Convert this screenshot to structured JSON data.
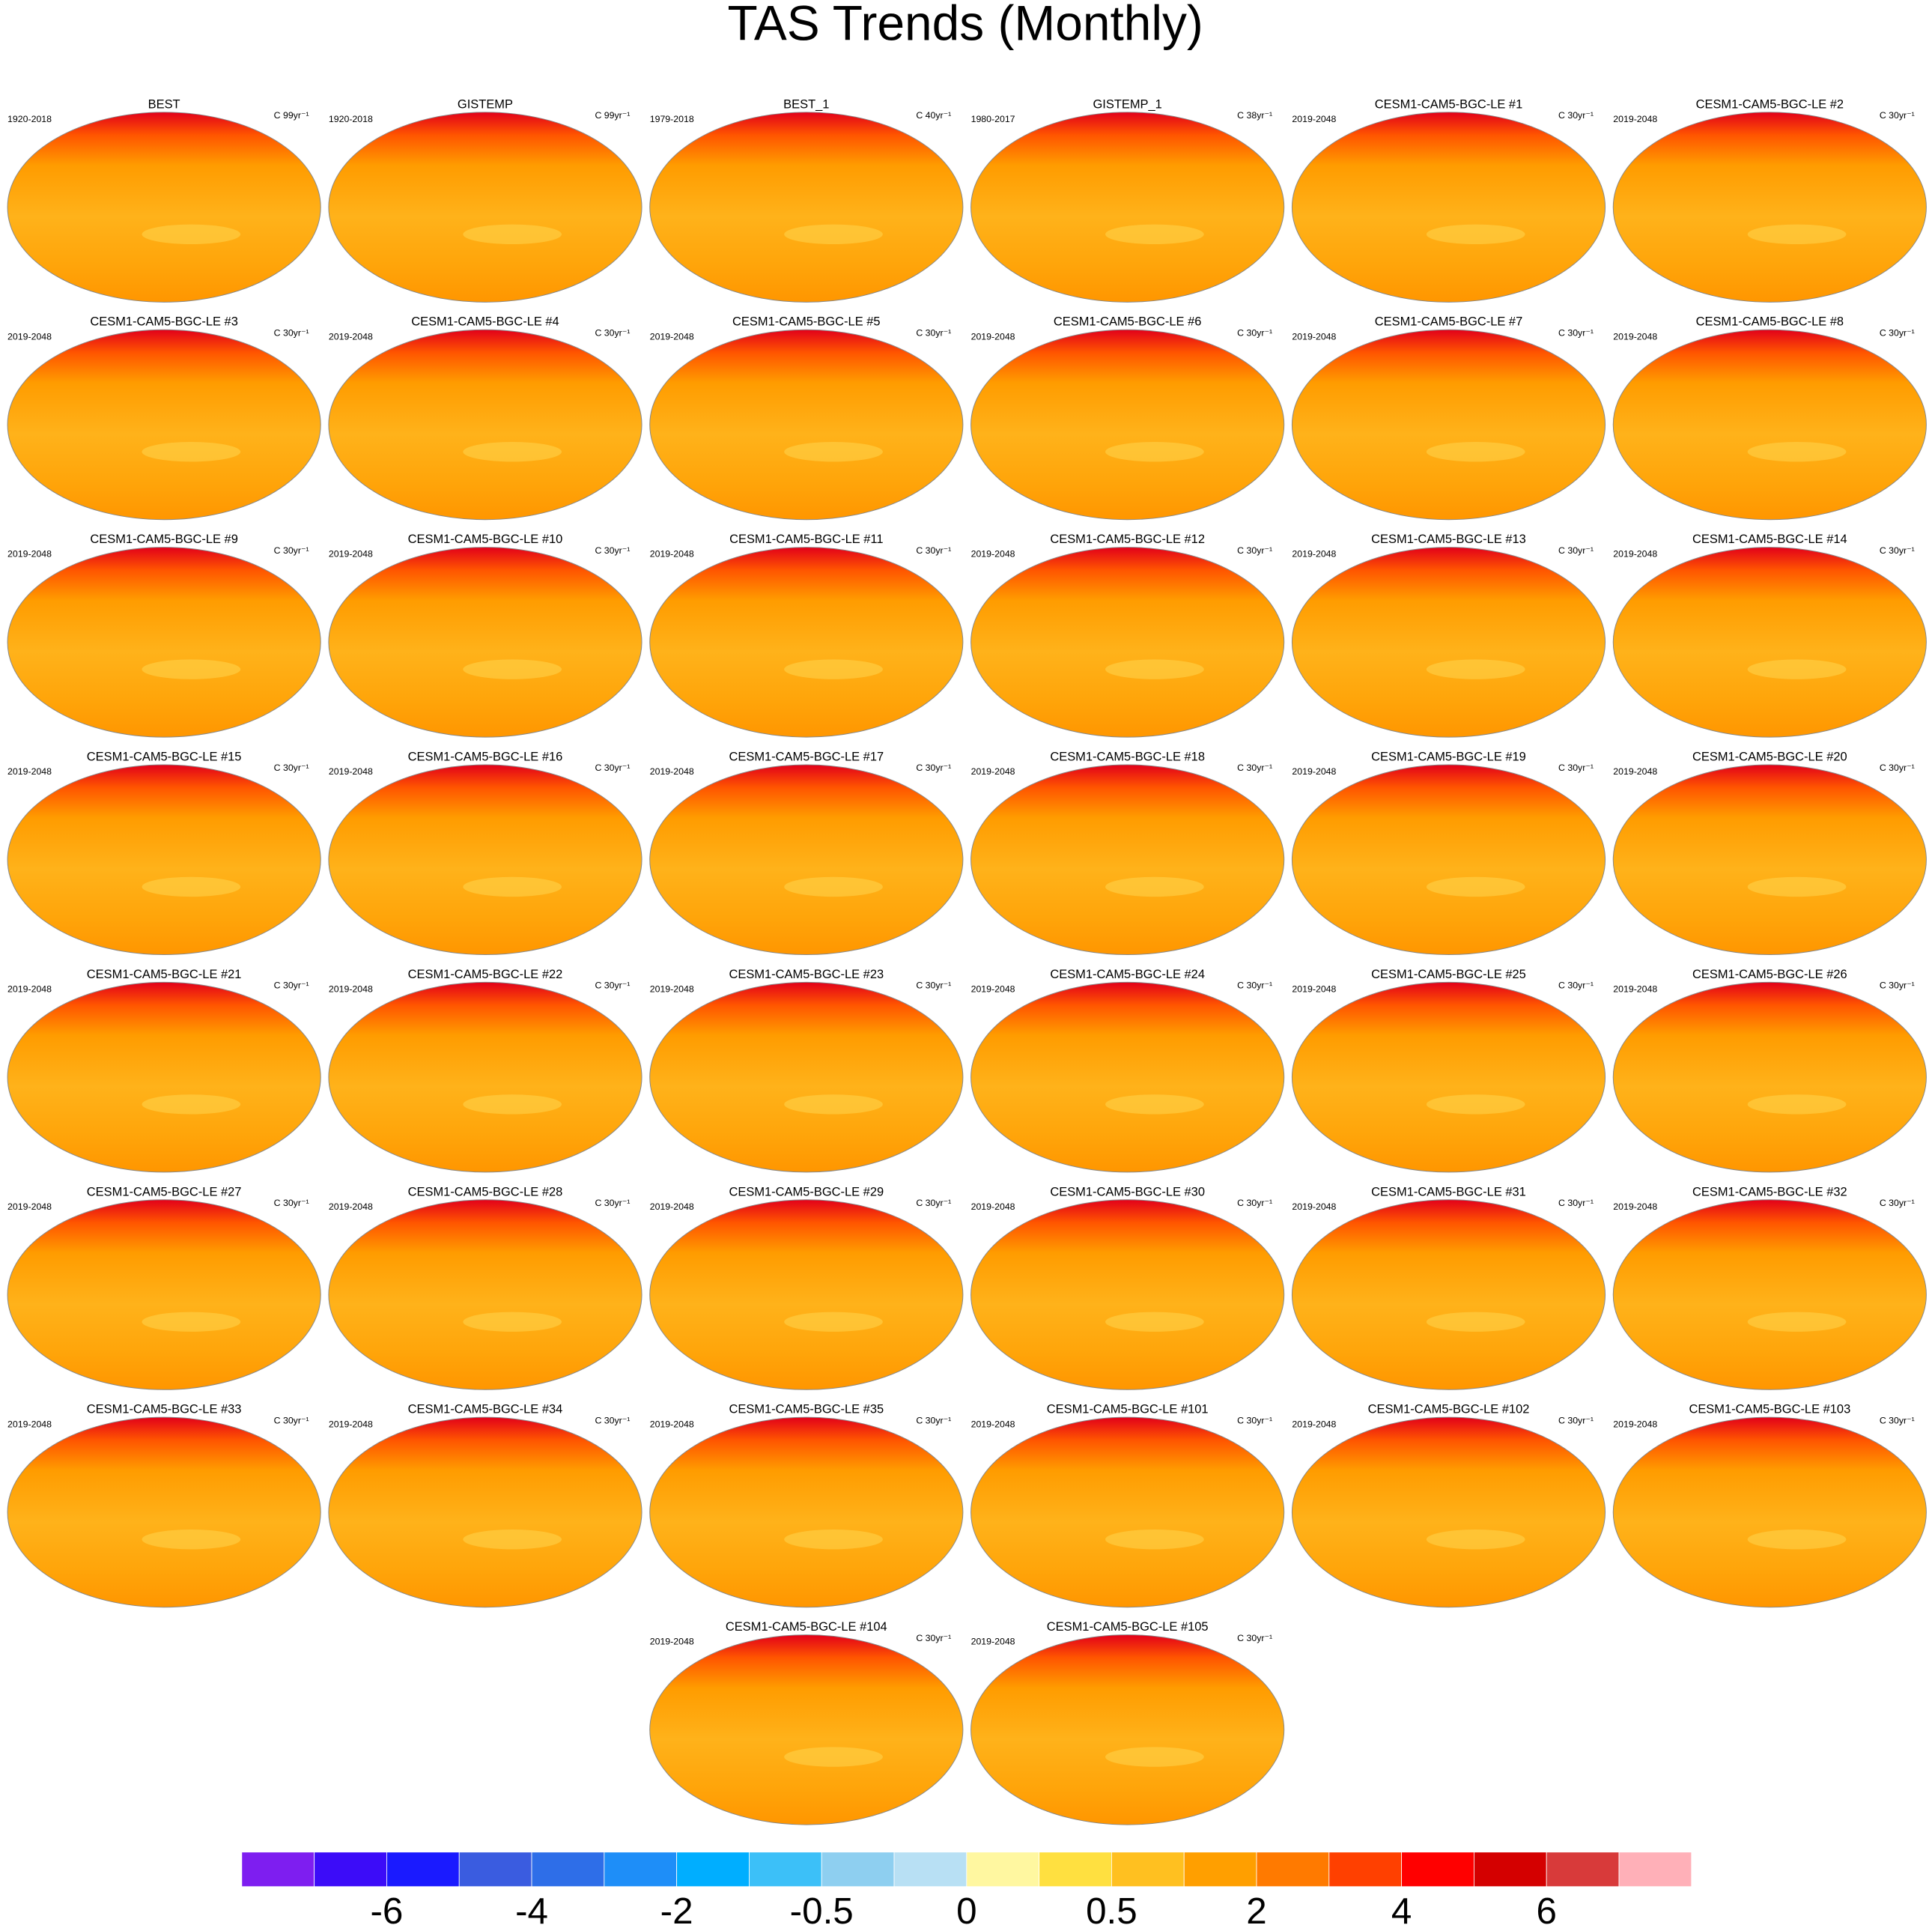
{
  "title": "TAS Trends (Monthly)",
  "panels": [
    {
      "title": "BEST",
      "period": "1920-2018",
      "units": "C 99yr⁻¹"
    },
    {
      "title": "GISTEMP",
      "period": "1920-2018",
      "units": "C 99yr⁻¹"
    },
    {
      "title": "BEST_1",
      "period": "1979-2018",
      "units": "C 40yr⁻¹"
    },
    {
      "title": "GISTEMP_1",
      "period": "1980-2017",
      "units": "C 38yr⁻¹"
    },
    {
      "title": "CESM1-CAM5-BGC-LE #1",
      "period": "2019-2048",
      "units": "C 30yr⁻¹"
    },
    {
      "title": "CESM1-CAM5-BGC-LE #2",
      "period": "2019-2048",
      "units": "C 30yr⁻¹"
    },
    {
      "title": "CESM1-CAM5-BGC-LE #3",
      "period": "2019-2048",
      "units": "C 30yr⁻¹"
    },
    {
      "title": "CESM1-CAM5-BGC-LE #4",
      "period": "2019-2048",
      "units": "C 30yr⁻¹"
    },
    {
      "title": "CESM1-CAM5-BGC-LE #5",
      "period": "2019-2048",
      "units": "C 30yr⁻¹"
    },
    {
      "title": "CESM1-CAM5-BGC-LE #6",
      "period": "2019-2048",
      "units": "C 30yr⁻¹"
    },
    {
      "title": "CESM1-CAM5-BGC-LE #7",
      "period": "2019-2048",
      "units": "C 30yr⁻¹"
    },
    {
      "title": "CESM1-CAM5-BGC-LE #8",
      "period": "2019-2048",
      "units": "C 30yr⁻¹"
    },
    {
      "title": "CESM1-CAM5-BGC-LE #9",
      "period": "2019-2048",
      "units": "C 30yr⁻¹"
    },
    {
      "title": "CESM1-CAM5-BGC-LE #10",
      "period": "2019-2048",
      "units": "C 30yr⁻¹"
    },
    {
      "title": "CESM1-CAM5-BGC-LE #11",
      "period": "2019-2048",
      "units": "C 30yr⁻¹"
    },
    {
      "title": "CESM1-CAM5-BGC-LE #12",
      "period": "2019-2048",
      "units": "C 30yr⁻¹"
    },
    {
      "title": "CESM1-CAM5-BGC-LE #13",
      "period": "2019-2048",
      "units": "C 30yr⁻¹"
    },
    {
      "title": "CESM1-CAM5-BGC-LE #14",
      "period": "2019-2048",
      "units": "C 30yr⁻¹"
    },
    {
      "title": "CESM1-CAM5-BGC-LE #15",
      "period": "2019-2048",
      "units": "C 30yr⁻¹"
    },
    {
      "title": "CESM1-CAM5-BGC-LE #16",
      "period": "2019-2048",
      "units": "C 30yr⁻¹"
    },
    {
      "title": "CESM1-CAM5-BGC-LE #17",
      "period": "2019-2048",
      "units": "C 30yr⁻¹"
    },
    {
      "title": "CESM1-CAM5-BGC-LE #18",
      "period": "2019-2048",
      "units": "C 30yr⁻¹"
    },
    {
      "title": "CESM1-CAM5-BGC-LE #19",
      "period": "2019-2048",
      "units": "C 30yr⁻¹"
    },
    {
      "title": "CESM1-CAM5-BGC-LE #20",
      "period": "2019-2048",
      "units": "C 30yr⁻¹"
    },
    {
      "title": "CESM1-CAM5-BGC-LE #21",
      "period": "2019-2048",
      "units": "C 30yr⁻¹"
    },
    {
      "title": "CESM1-CAM5-BGC-LE #22",
      "period": "2019-2048",
      "units": "C 30yr⁻¹"
    },
    {
      "title": "CESM1-CAM5-BGC-LE #23",
      "period": "2019-2048",
      "units": "C 30yr⁻¹"
    },
    {
      "title": "CESM1-CAM5-BGC-LE #24",
      "period": "2019-2048",
      "units": "C 30yr⁻¹"
    },
    {
      "title": "CESM1-CAM5-BGC-LE #25",
      "period": "2019-2048",
      "units": "C 30yr⁻¹"
    },
    {
      "title": "CESM1-CAM5-BGC-LE #26",
      "period": "2019-2048",
      "units": "C 30yr⁻¹"
    },
    {
      "title": "CESM1-CAM5-BGC-LE #27",
      "period": "2019-2048",
      "units": "C 30yr⁻¹"
    },
    {
      "title": "CESM1-CAM5-BGC-LE #28",
      "period": "2019-2048",
      "units": "C 30yr⁻¹"
    },
    {
      "title": "CESM1-CAM5-BGC-LE #29",
      "period": "2019-2048",
      "units": "C 30yr⁻¹"
    },
    {
      "title": "CESM1-CAM5-BGC-LE #30",
      "period": "2019-2048",
      "units": "C 30yr⁻¹"
    },
    {
      "title": "CESM1-CAM5-BGC-LE #31",
      "period": "2019-2048",
      "units": "C 30yr⁻¹"
    },
    {
      "title": "CESM1-CAM5-BGC-LE #32",
      "period": "2019-2048",
      "units": "C 30yr⁻¹"
    },
    {
      "title": "CESM1-CAM5-BGC-LE #33",
      "period": "2019-2048",
      "units": "C 30yr⁻¹"
    },
    {
      "title": "CESM1-CAM5-BGC-LE #34",
      "period": "2019-2048",
      "units": "C 30yr⁻¹"
    },
    {
      "title": "CESM1-CAM5-BGC-LE #35",
      "period": "2019-2048",
      "units": "C 30yr⁻¹"
    },
    {
      "title": "CESM1-CAM5-BGC-LE #101",
      "period": "2019-2048",
      "units": "C 30yr⁻¹"
    },
    {
      "title": "CESM1-CAM5-BGC-LE #102",
      "period": "2019-2048",
      "units": "C 30yr⁻¹"
    },
    {
      "title": "CESM1-CAM5-BGC-LE #103",
      "period": "2019-2048",
      "units": "C 30yr⁻¹"
    },
    {
      "title": "CESM1-CAM5-BGC-LE #104",
      "period": "2019-2048",
      "units": "C 30yr⁻¹"
    },
    {
      "title": "CESM1-CAM5-BGC-LE #105",
      "period": "2019-2048",
      "units": "C 30yr⁻¹"
    }
  ],
  "colorbar": {
    "colors": [
      "#7e1ef0",
      "#3c0cf8",
      "#1a1aff",
      "#3a5ce0",
      "#2e6ee8",
      "#1e8ef8",
      "#00aeff",
      "#3cc0f8",
      "#8ecff0",
      "#b8e0f4",
      "#fff7a0",
      "#ffe040",
      "#ffc020",
      "#ff9f00",
      "#ff7a00",
      "#ff4000",
      "#ff0000",
      "#d40000",
      "#d83a3a",
      "#ffb0b8"
    ],
    "labels": [
      "-6",
      "-4",
      "-2",
      "-0.5",
      "0",
      "0.5",
      "2",
      "4",
      "6"
    ]
  }
}
